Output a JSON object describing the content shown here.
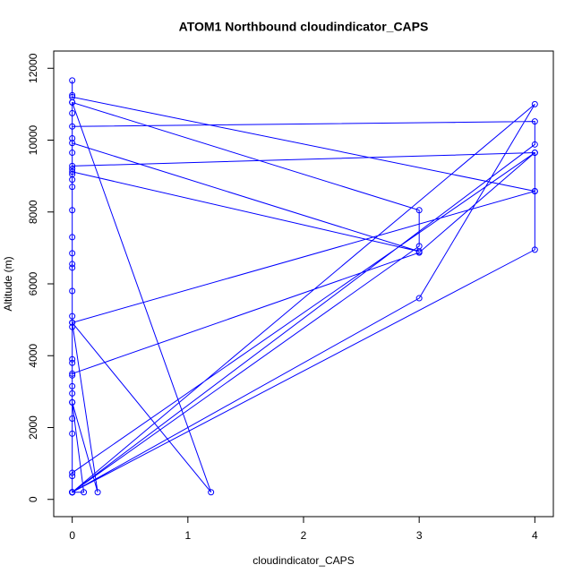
{
  "chart_data": {
    "type": "line",
    "title": "ATOM1 Northbound cloudindicator_CAPS",
    "xlabel": "cloudindicator_CAPS",
    "ylabel": "Altitude (m)",
    "color": "#0000ff",
    "marker": "open-circle",
    "x": [
      0,
      0,
      0,
      4,
      4,
      0,
      0,
      3,
      0,
      0,
      4,
      4,
      0,
      0,
      3,
      3,
      0,
      0,
      4,
      4,
      0,
      0,
      3,
      4,
      0,
      0,
      3,
      4,
      0,
      0,
      0,
      0,
      0,
      0,
      0,
      0,
      0,
      0,
      0,
      0,
      0,
      0,
      0,
      0,
      0,
      0,
      0,
      0,
      0,
      0,
      0,
      0,
      0,
      1.2,
      0,
      0.22,
      0,
      0.1,
      0,
      0,
      0
    ],
    "values": [
      11660,
      11250,
      11200,
      8580,
      9650,
      9280,
      9120,
      6900,
      9920,
      10380,
      10520,
      9880,
      200,
      11050,
      8050,
      7050,
      200,
      4920,
      8580,
      6950,
      200,
      3500,
      6870,
      9650,
      740,
      200,
      5600,
      11000,
      200,
      1830,
      2250,
      2700,
      2950,
      3150,
      3450,
      3800,
      3900,
      4800,
      5100,
      5800,
      6450,
      6550,
      6850,
      7300,
      8050,
      8700,
      8900,
      9050,
      9200,
      9650,
      10050,
      10750,
      11050,
      200,
      4920,
      200,
      2700,
      200,
      200,
      650,
      200
    ],
    "xlim": [
      -0.16,
      4.16
    ],
    "xticks": [
      0,
      1,
      2,
      3,
      4
    ],
    "ylim": [
      -480,
      12480
    ],
    "yticks": [
      0,
      2000,
      4000,
      6000,
      8000,
      10000,
      12000
    ]
  }
}
